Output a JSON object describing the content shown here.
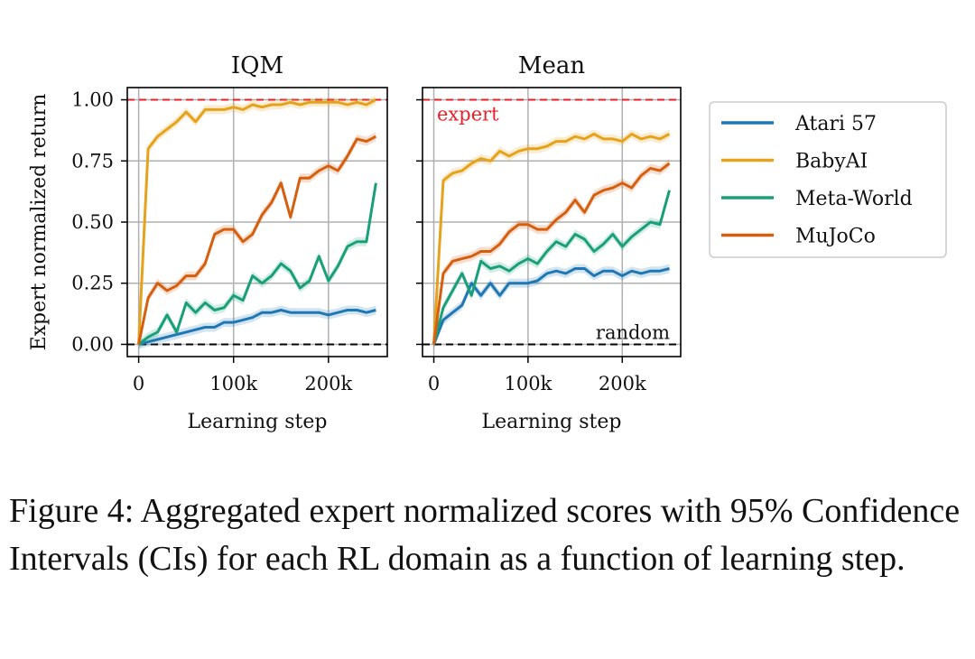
{
  "figure": {
    "caption": "Figure 4: Aggregated expert normalized scores with 95% Confidence Intervals (CIs) for each RL domain as a function of learning step.",
    "ylabel": "Expert normalized return",
    "reference_lines": {
      "expert_label": "expert",
      "random_label": "random",
      "expert_color": "#e8202a",
      "random_color": "#000000"
    },
    "colors": {
      "Atari 57": "#1f77b4",
      "BabyAI": "#e5a21a",
      "Meta-World": "#1aa079",
      "MuJoCo": "#d55e0f"
    },
    "legend": [
      "Atari 57",
      "BabyAI",
      "Meta-World",
      "MuJoCo"
    ]
  },
  "chart_data": [
    {
      "type": "line",
      "title": "IQM",
      "xlabel": "Learning step",
      "ylabel": "Expert normalized return",
      "xlim": [
        -12000,
        262000
      ],
      "ylim": [
        -0.05,
        1.05
      ],
      "xticks": [
        0,
        100000,
        200000
      ],
      "xtick_labels": [
        "0",
        "100k",
        "200k"
      ],
      "yticks": [
        0.0,
        0.25,
        0.5,
        0.75,
        1.0
      ],
      "ytick_labels": [
        "0.00",
        "0.25",
        "0.50",
        "0.75",
        "1.00"
      ],
      "grid": true,
      "x": [
        0,
        10000,
        20000,
        30000,
        40000,
        50000,
        60000,
        70000,
        80000,
        90000,
        100000,
        110000,
        120000,
        130000,
        140000,
        150000,
        160000,
        170000,
        180000,
        190000,
        200000,
        210000,
        220000,
        230000,
        240000,
        250000
      ],
      "series": [
        {
          "name": "Atari 57",
          "values": [
            0.0,
            0.01,
            0.02,
            0.03,
            0.04,
            0.05,
            0.06,
            0.07,
            0.07,
            0.09,
            0.09,
            0.1,
            0.11,
            0.13,
            0.13,
            0.14,
            0.13,
            0.13,
            0.13,
            0.13,
            0.12,
            0.13,
            0.14,
            0.14,
            0.13,
            0.14
          ]
        },
        {
          "name": "BabyAI",
          "values": [
            0.0,
            0.8,
            0.85,
            0.88,
            0.91,
            0.95,
            0.91,
            0.96,
            0.96,
            0.96,
            0.97,
            0.96,
            0.98,
            0.97,
            0.98,
            0.98,
            0.99,
            0.98,
            0.99,
            0.99,
            0.99,
            0.99,
            0.98,
            0.99,
            0.98,
            1.0
          ]
        },
        {
          "name": "Meta-World",
          "values": [
            0.0,
            0.03,
            0.05,
            0.12,
            0.05,
            0.17,
            0.13,
            0.17,
            0.14,
            0.15,
            0.2,
            0.18,
            0.28,
            0.25,
            0.28,
            0.33,
            0.3,
            0.23,
            0.26,
            0.36,
            0.26,
            0.32,
            0.4,
            0.42,
            0.42,
            0.66
          ]
        },
        {
          "name": "MuJoCo",
          "values": [
            0.0,
            0.19,
            0.25,
            0.22,
            0.24,
            0.28,
            0.28,
            0.33,
            0.45,
            0.47,
            0.47,
            0.42,
            0.45,
            0.53,
            0.58,
            0.66,
            0.52,
            0.68,
            0.68,
            0.71,
            0.73,
            0.71,
            0.77,
            0.84,
            0.83,
            0.85
          ]
        }
      ]
    },
    {
      "type": "line",
      "title": "Mean",
      "xlabel": "Learning step",
      "ylabel": "",
      "xlim": [
        -12000,
        262000
      ],
      "ylim": [
        -0.05,
        1.05
      ],
      "xticks": [
        0,
        100000,
        200000
      ],
      "xtick_labels": [
        "0",
        "100k",
        "200k"
      ],
      "yticks": [
        0.0,
        0.25,
        0.5,
        0.75,
        1.0
      ],
      "ytick_labels": [],
      "grid": true,
      "x": [
        0,
        10000,
        20000,
        30000,
        40000,
        50000,
        60000,
        70000,
        80000,
        90000,
        100000,
        110000,
        120000,
        130000,
        140000,
        150000,
        160000,
        170000,
        180000,
        190000,
        200000,
        210000,
        220000,
        230000,
        240000,
        250000
      ],
      "series": [
        {
          "name": "Atari 57",
          "values": [
            0.0,
            0.1,
            0.13,
            0.16,
            0.25,
            0.2,
            0.25,
            0.2,
            0.25,
            0.25,
            0.25,
            0.26,
            0.29,
            0.3,
            0.29,
            0.31,
            0.31,
            0.28,
            0.3,
            0.3,
            0.28,
            0.3,
            0.29,
            0.3,
            0.3,
            0.31
          ]
        },
        {
          "name": "BabyAI",
          "values": [
            0.0,
            0.67,
            0.7,
            0.71,
            0.74,
            0.76,
            0.75,
            0.79,
            0.77,
            0.79,
            0.8,
            0.8,
            0.81,
            0.83,
            0.83,
            0.85,
            0.84,
            0.86,
            0.84,
            0.84,
            0.83,
            0.86,
            0.84,
            0.85,
            0.84,
            0.86
          ]
        },
        {
          "name": "Meta-World",
          "values": [
            0.0,
            0.15,
            0.22,
            0.29,
            0.2,
            0.34,
            0.31,
            0.32,
            0.3,
            0.33,
            0.35,
            0.33,
            0.38,
            0.42,
            0.4,
            0.45,
            0.43,
            0.38,
            0.41,
            0.45,
            0.4,
            0.44,
            0.47,
            0.5,
            0.49,
            0.63
          ]
        },
        {
          "name": "MuJoCo",
          "values": [
            0.0,
            0.29,
            0.34,
            0.35,
            0.36,
            0.38,
            0.38,
            0.41,
            0.46,
            0.49,
            0.49,
            0.47,
            0.47,
            0.51,
            0.54,
            0.59,
            0.54,
            0.61,
            0.63,
            0.64,
            0.66,
            0.64,
            0.69,
            0.72,
            0.71,
            0.74
          ]
        }
      ]
    }
  ]
}
